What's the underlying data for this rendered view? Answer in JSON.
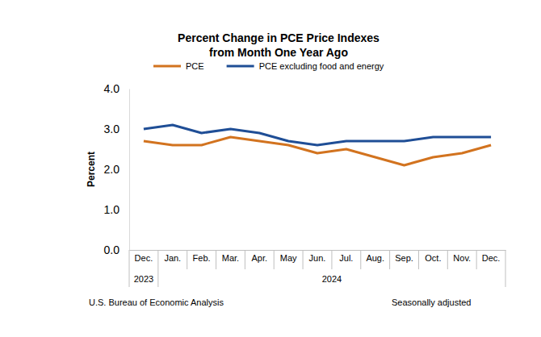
{
  "chart_data": {
    "type": "line",
    "title": [
      "Percent Change in PCE Price Indexes",
      "from Month One Year Ago"
    ],
    "y_label": "Percent",
    "categories": [
      "Dec.",
      "Jan.",
      "Feb.",
      "Mar.",
      "Apr.",
      "May",
      "Jun.",
      "Jul.",
      "Aug.",
      "Sep.",
      "Oct.",
      "Nov.",
      "Dec."
    ],
    "category_groups": [
      {
        "label": "2023",
        "size": 1
      },
      {
        "label": "2024",
        "size": 12
      }
    ],
    "series": [
      {
        "name": "PCE",
        "color": "#d2731f",
        "values": [
          2.7,
          2.6,
          2.6,
          2.8,
          2.7,
          2.6,
          2.4,
          2.5,
          2.3,
          2.1,
          2.3,
          2.4,
          2.6
        ]
      },
      {
        "name": "PCE excluding food and energy",
        "color": "#1f4e96",
        "values": [
          3.0,
          3.1,
          2.9,
          3.0,
          2.9,
          2.7,
          2.6,
          2.7,
          2.7,
          2.7,
          2.8,
          2.8,
          2.8
        ]
      }
    ],
    "ylim": [
      0,
      4
    ],
    "yticks": [
      {
        "value": 0,
        "label": "0.0"
      },
      {
        "value": 1,
        "label": "1.0"
      },
      {
        "value": 2,
        "label": "2.0"
      },
      {
        "value": 3,
        "label": "3.0"
      },
      {
        "value": 4,
        "label": "4.0"
      }
    ],
    "grid": false,
    "legend": "top",
    "notes": [
      "U.S. Bureau of Economic Analysis",
      "Seasonally adjusted"
    ]
  }
}
